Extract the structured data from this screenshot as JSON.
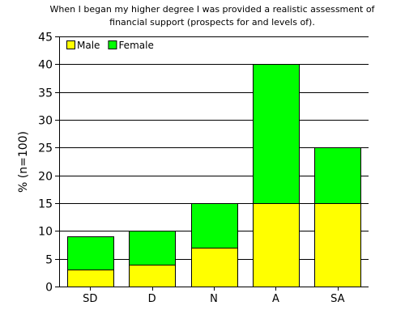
{
  "chart_data": {
    "type": "bar",
    "stacked": true,
    "title_lines": [
      "When I began my higher degree I was provided a realistic assessment of",
      "financial support (prospects for and levels of)."
    ],
    "xlabel": "",
    "ylabel": "% (n=100)",
    "categories": [
      "SD",
      "D",
      "N",
      "A",
      "SA"
    ],
    "series": [
      {
        "name": "Male",
        "color": "#ffff00",
        "values": [
          3,
          4,
          7,
          15,
          15
        ]
      },
      {
        "name": "Female",
        "color": "#00ff00",
        "values": [
          6,
          6,
          8,
          25,
          10
        ]
      }
    ],
    "ylim": [
      0,
      45
    ],
    "yticks": [
      0,
      5,
      10,
      15,
      20,
      25,
      30,
      35,
      40,
      45
    ],
    "grid": true,
    "legend_position": "top-left"
  }
}
